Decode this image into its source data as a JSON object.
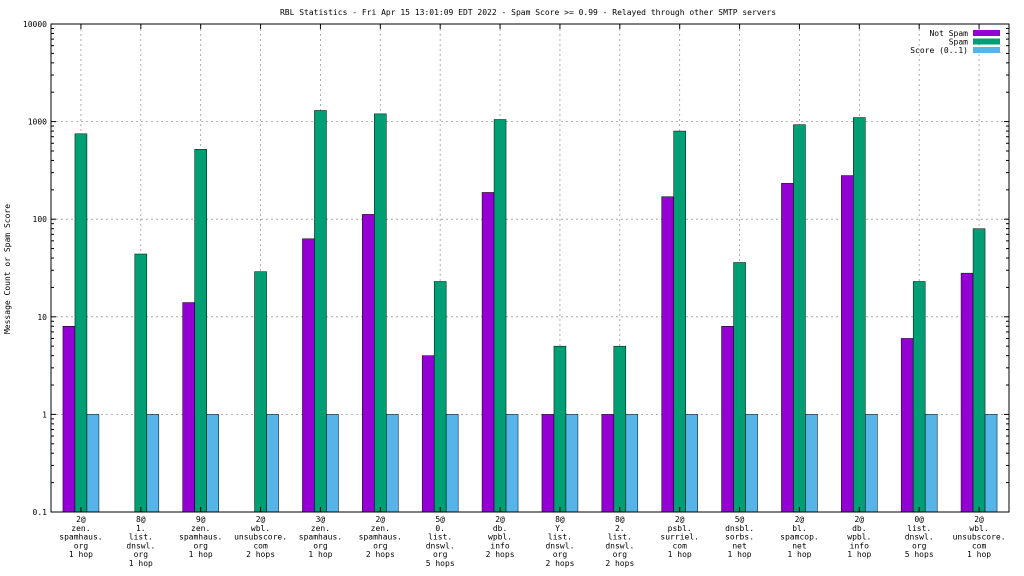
{
  "chart_data": {
    "type": "bar",
    "title": "RBL Statistics - Fri Apr 15 13:01:09 EDT 2022 - Spam Score >= 0.99 - Relayed through other SMTP servers",
    "ylabel": "Message Count or Spam Score",
    "xlabel": "",
    "yscale": "log",
    "ylim": [
      0.1,
      10000
    ],
    "yticks": [
      "0.1",
      "1",
      "10",
      "100",
      "1000",
      "10000"
    ],
    "grid": true,
    "legend_position": "top-right",
    "categories": [
      [
        "2@",
        "zen.",
        "spamhaus.",
        "org",
        "1 hop"
      ],
      [
        "8@",
        "1.",
        "list.",
        "dnswl.",
        "org",
        "1 hop"
      ],
      [
        "9@",
        "zen.",
        "spamhaus.",
        "org",
        "1 hop"
      ],
      [
        "2@",
        "wbl.",
        "unsubscore.",
        "com",
        "2 hops"
      ],
      [
        "3@",
        "zen.",
        "spamhaus.",
        "org",
        "1 hop"
      ],
      [
        "2@",
        "zen.",
        "spamhaus.",
        "org",
        "2 hops"
      ],
      [
        "5@",
        "0.",
        "list.",
        "dnswl.",
        "org",
        "5 hops"
      ],
      [
        "2@",
        "db.",
        "wpbl.",
        "info",
        "2 hops"
      ],
      [
        "8@",
        "Y.",
        "list.",
        "dnswl.",
        "org",
        "2 hops"
      ],
      [
        "8@",
        "2.",
        "list.",
        "dnswl.",
        "org",
        "2 hops"
      ],
      [
        "2@",
        "psbl.",
        "surriel.",
        "com",
        "1 hop"
      ],
      [
        "5@",
        "dnsbl.",
        "sorbs.",
        "net",
        "1 hop"
      ],
      [
        "2@",
        "bl.",
        "spamcop.",
        "net",
        "1 hop"
      ],
      [
        "2@",
        "db.",
        "wpbl.",
        "info",
        "1 hop"
      ],
      [
        "0@",
        "list.",
        "dnswl.",
        "org",
        "5 hops"
      ],
      [
        "2@",
        "wbl.",
        "unsubscore.",
        "com",
        "1 hop"
      ]
    ],
    "series": [
      {
        "name": "Not Spam",
        "color": "#9400d3",
        "values": [
          8,
          0,
          14,
          0,
          63,
          112,
          4,
          188,
          1,
          1,
          170,
          8,
          233,
          280,
          6,
          28
        ]
      },
      {
        "name": "Spam",
        "color": "#009e73",
        "values": [
          750,
          44,
          520,
          29,
          1300,
          1200,
          23,
          1050,
          5,
          5,
          800,
          36,
          930,
          1100,
          23,
          80
        ]
      },
      {
        "name": "Score (0..1)",
        "color": "#56b4e9",
        "values": [
          1,
          1,
          1,
          1,
          1,
          1,
          1,
          1,
          1,
          1,
          1,
          1,
          1,
          1,
          1,
          1
        ]
      }
    ]
  }
}
